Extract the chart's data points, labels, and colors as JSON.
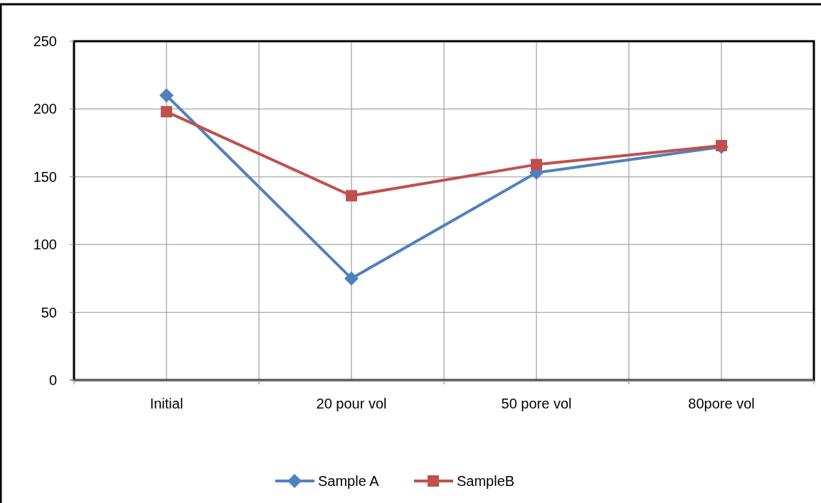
{
  "chart_data": {
    "type": "line",
    "categories": [
      "Initial",
      "20 pour vol",
      "50 pore vol",
      "80pore vol"
    ],
    "series": [
      {
        "name": "Sample A",
        "color": "#4f81bd",
        "marker": "diamond",
        "values": [
          210,
          75,
          153,
          172
        ]
      },
      {
        "name": "SampleB",
        "color": "#c0504d",
        "marker": "square",
        "values": [
          198,
          136,
          159,
          173
        ]
      }
    ],
    "ylim": [
      0,
      250
    ],
    "yticks": [
      0,
      50,
      100,
      150,
      200,
      250
    ],
    "grid": true,
    "legend": "bottom",
    "line_style": "solid"
  }
}
